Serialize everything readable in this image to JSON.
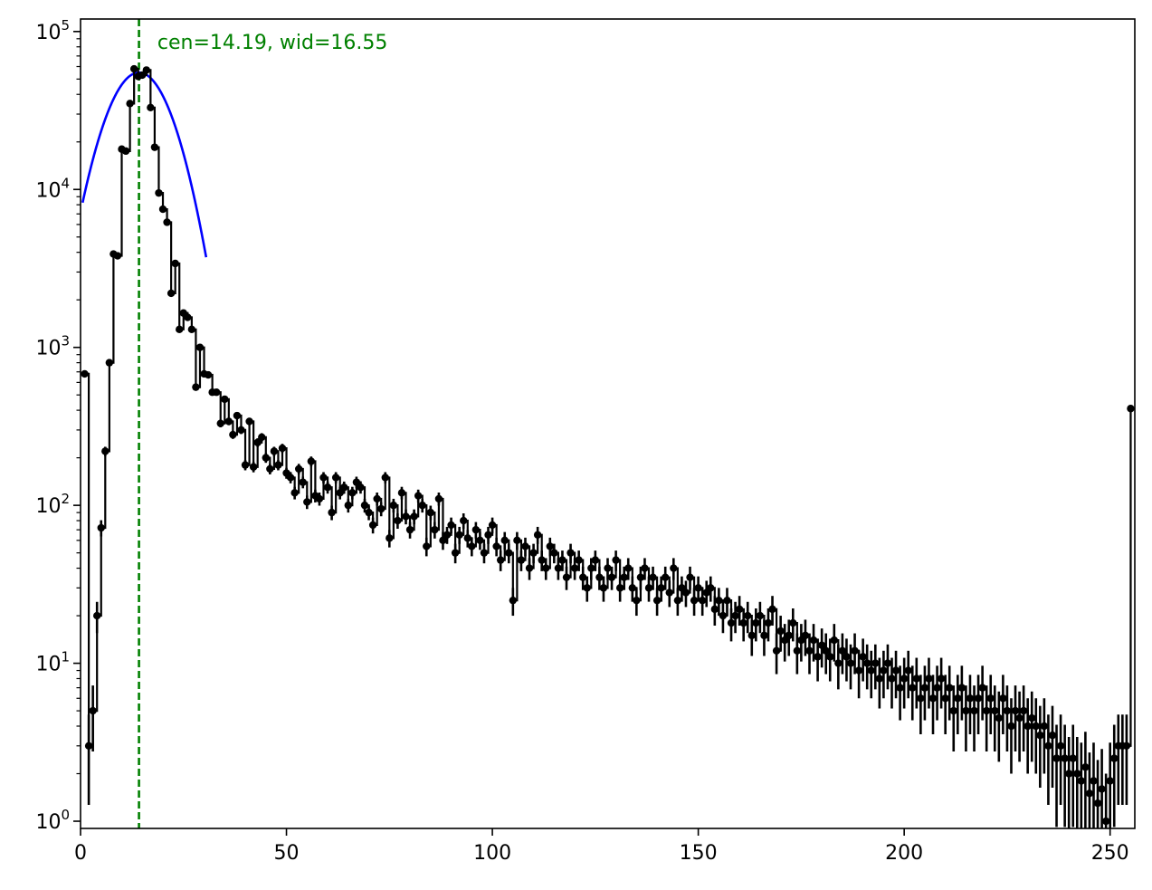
{
  "chart_data": {
    "type": "scatter",
    "title": "",
    "xlabel": "",
    "ylabel": "",
    "xlim": [
      0,
      256
    ],
    "ylim": [
      0.9,
      120000
    ],
    "yscale": "log",
    "grid": false,
    "legend": "none",
    "x_ticks": [
      {
        "value": 0,
        "label": "0"
      },
      {
        "value": 50,
        "label": "50"
      },
      {
        "value": 100,
        "label": "100"
      },
      {
        "value": 150,
        "label": "150"
      },
      {
        "value": 200,
        "label": "200"
      },
      {
        "value": 250,
        "label": "250"
      }
    ],
    "y_ticks": [
      {
        "value": 1,
        "base": "10",
        "exp": "0"
      },
      {
        "value": 10,
        "base": "10",
        "exp": "1"
      },
      {
        "value": 100,
        "base": "10",
        "exp": "2"
      },
      {
        "value": 1000,
        "base": "10",
        "exp": "3"
      },
      {
        "value": 10000,
        "base": "10",
        "exp": "4"
      },
      {
        "value": 100000,
        "base": "10",
        "exp": "5"
      }
    ],
    "annotation": {
      "text": "cen=14.19, wid=16.55",
      "x": 18,
      "y": 70000,
      "color": "#008000"
    },
    "vline": {
      "x": 14.19,
      "color": "#008000",
      "style": "dashed"
    },
    "gaussian_fit": {
      "center": 14.19,
      "width": 16.55,
      "amplitude": 55000,
      "color": "#0000ff"
    },
    "histogram_color": "#000000",
    "anchors": [
      [
        1,
        680
      ],
      [
        2,
        3
      ],
      [
        3,
        5
      ],
      [
        4,
        20
      ],
      [
        5,
        72
      ],
      [
        6,
        220
      ],
      [
        7,
        800
      ],
      [
        8,
        3900
      ],
      [
        9,
        3800
      ],
      [
        10,
        18000
      ],
      [
        11,
        17500
      ],
      [
        12,
        35000
      ],
      [
        13,
        58000
      ],
      [
        14,
        52000
      ],
      [
        15,
        53000
      ],
      [
        16,
        57000
      ],
      [
        17,
        33000
      ],
      [
        18,
        18500
      ],
      [
        19,
        9500
      ],
      [
        20,
        7500
      ],
      [
        21,
        6200
      ],
      [
        22,
        2200
      ],
      [
        23,
        3400
      ],
      [
        24,
        1300
      ],
      [
        25,
        1650
      ],
      [
        26,
        1550
      ],
      [
        27,
        1300
      ],
      [
        28,
        560
      ],
      [
        29,
        1000
      ],
      [
        30,
        680
      ],
      [
        31,
        670
      ],
      [
        32,
        520
      ],
      [
        33,
        520
      ],
      [
        34,
        330
      ],
      [
        35,
        470
      ],
      [
        36,
        340
      ],
      [
        37,
        280
      ],
      [
        38,
        370
      ],
      [
        39,
        300
      ],
      [
        40,
        180
      ],
      [
        41,
        340
      ],
      [
        42,
        175
      ],
      [
        43,
        250
      ],
      [
        44,
        270
      ],
      [
        45,
        200
      ],
      [
        46,
        170
      ],
      [
        47,
        220
      ],
      [
        48,
        180
      ],
      [
        49,
        230
      ],
      [
        50,
        160
      ],
      [
        51,
        150
      ],
      [
        52,
        120
      ],
      [
        53,
        170
      ],
      [
        54,
        140
      ],
      [
        55,
        105
      ],
      [
        56,
        190
      ],
      [
        57,
        115
      ],
      [
        58,
        110
      ],
      [
        59,
        150
      ],
      [
        60,
        130
      ],
      [
        61,
        90
      ],
      [
        62,
        150
      ],
      [
        63,
        120
      ],
      [
        64,
        130
      ],
      [
        65,
        100
      ],
      [
        66,
        120
      ],
      [
        67,
        140
      ],
      [
        68,
        130
      ],
      [
        69,
        100
      ],
      [
        70,
        90
      ],
      [
        71,
        75
      ],
      [
        72,
        110
      ],
      [
        73,
        95
      ],
      [
        74,
        150
      ],
      [
        75,
        62
      ],
      [
        76,
        100
      ],
      [
        77,
        80
      ],
      [
        78,
        120
      ],
      [
        79,
        85
      ],
      [
        80,
        70
      ],
      [
        81,
        85
      ],
      [
        82,
        115
      ],
      [
        83,
        100
      ],
      [
        84,
        55
      ],
      [
        85,
        90
      ],
      [
        86,
        70
      ],
      [
        87,
        110
      ],
      [
        88,
        60
      ],
      [
        89,
        65
      ],
      [
        90,
        75
      ],
      [
        91,
        50
      ],
      [
        92,
        65
      ],
      [
        93,
        80
      ],
      [
        94,
        62
      ],
      [
        95,
        55
      ],
      [
        96,
        70
      ],
      [
        97,
        60
      ],
      [
        98,
        50
      ],
      [
        99,
        65
      ],
      [
        100,
        75
      ],
      [
        101,
        55
      ],
      [
        102,
        45
      ],
      [
        103,
        60
      ],
      [
        104,
        50
      ],
      [
        105,
        25
      ],
      [
        106,
        60
      ],
      [
        107,
        45
      ],
      [
        108,
        55
      ],
      [
        109,
        40
      ],
      [
        110,
        50
      ],
      [
        111,
        65
      ],
      [
        112,
        45
      ],
      [
        113,
        40
      ],
      [
        114,
        55
      ],
      [
        115,
        50
      ],
      [
        116,
        40
      ],
      [
        117,
        45
      ],
      [
        118,
        35
      ],
      [
        119,
        50
      ],
      [
        120,
        40
      ],
      [
        121,
        45
      ],
      [
        122,
        35
      ],
      [
        123,
        30
      ],
      [
        124,
        40
      ],
      [
        125,
        45
      ],
      [
        126,
        35
      ],
      [
        127,
        30
      ],
      [
        128,
        40
      ],
      [
        129,
        35
      ],
      [
        130,
        45
      ],
      [
        131,
        30
      ],
      [
        132,
        35
      ],
      [
        133,
        40
      ],
      [
        134,
        30
      ],
      [
        135,
        25
      ],
      [
        136,
        35
      ],
      [
        137,
        40
      ],
      [
        138,
        30
      ],
      [
        139,
        35
      ],
      [
        140,
        25
      ],
      [
        141,
        30
      ],
      [
        142,
        35
      ],
      [
        143,
        28
      ],
      [
        144,
        40
      ],
      [
        145,
        25
      ],
      [
        146,
        30
      ],
      [
        147,
        28
      ],
      [
        148,
        35
      ],
      [
        149,
        25
      ],
      [
        150,
        30
      ],
      [
        151,
        25
      ],
      [
        152,
        28
      ],
      [
        153,
        30
      ],
      [
        154,
        22
      ],
      [
        155,
        25
      ],
      [
        156,
        20
      ],
      [
        157,
        25
      ],
      [
        158,
        18
      ],
      [
        159,
        20
      ],
      [
        160,
        22
      ],
      [
        161,
        18
      ],
      [
        162,
        20
      ],
      [
        163,
        15
      ],
      [
        164,
        18
      ],
      [
        165,
        20
      ],
      [
        166,
        15
      ],
      [
        167,
        18
      ],
      [
        168,
        22
      ],
      [
        169,
        12
      ],
      [
        170,
        16
      ],
      [
        171,
        14
      ],
      [
        172,
        15
      ],
      [
        173,
        18
      ],
      [
        174,
        12
      ],
      [
        175,
        14
      ],
      [
        176,
        15
      ],
      [
        177,
        12
      ],
      [
        178,
        14
      ],
      [
        179,
        11
      ],
      [
        180,
        13
      ],
      [
        181,
        12
      ],
      [
        182,
        11
      ],
      [
        183,
        14
      ],
      [
        184,
        10
      ],
      [
        185,
        12
      ],
      [
        186,
        11
      ],
      [
        187,
        10
      ],
      [
        188,
        12
      ],
      [
        189,
        9
      ],
      [
        190,
        11
      ],
      [
        191,
        10
      ],
      [
        192,
        9
      ],
      [
        193,
        10
      ],
      [
        194,
        8
      ],
      [
        195,
        9
      ],
      [
        196,
        10
      ],
      [
        197,
        8
      ],
      [
        198,
        9
      ],
      [
        199,
        7
      ],
      [
        200,
        8
      ],
      [
        201,
        9
      ],
      [
        202,
        7
      ],
      [
        203,
        8
      ],
      [
        204,
        6
      ],
      [
        205,
        7
      ],
      [
        206,
        8
      ],
      [
        207,
        6
      ],
      [
        208,
        7
      ],
      [
        209,
        8
      ],
      [
        210,
        6
      ],
      [
        211,
        7
      ],
      [
        212,
        5
      ],
      [
        213,
        6
      ],
      [
        214,
        7
      ],
      [
        215,
        5
      ],
      [
        216,
        6
      ],
      [
        217,
        5
      ],
      [
        218,
        6
      ],
      [
        219,
        7
      ],
      [
        220,
        5
      ],
      [
        221,
        6
      ],
      [
        222,
        5
      ],
      [
        223,
        4.5
      ],
      [
        224,
        6
      ],
      [
        225,
        5
      ],
      [
        226,
        4
      ],
      [
        227,
        5
      ],
      [
        228,
        4.5
      ],
      [
        229,
        5
      ],
      [
        230,
        4
      ],
      [
        231,
        4.5
      ],
      [
        232,
        4
      ],
      [
        233,
        3.5
      ],
      [
        234,
        4
      ],
      [
        235,
        3
      ],
      [
        236,
        3.5
      ],
      [
        237,
        2.5
      ],
      [
        238,
        3
      ],
      [
        239,
        2.5
      ],
      [
        240,
        2
      ],
      [
        241,
        2.5
      ],
      [
        242,
        2
      ],
      [
        243,
        1.8
      ],
      [
        244,
        2.2
      ],
      [
        245,
        1.5
      ],
      [
        246,
        1.8
      ],
      [
        247,
        1.3
      ],
      [
        248,
        1.6
      ],
      [
        249,
        1
      ],
      [
        250,
        1.8
      ],
      [
        251,
        2.5
      ],
      [
        252,
        3
      ],
      [
        253,
        3
      ],
      [
        254,
        3
      ],
      [
        255,
        410
      ]
    ]
  }
}
